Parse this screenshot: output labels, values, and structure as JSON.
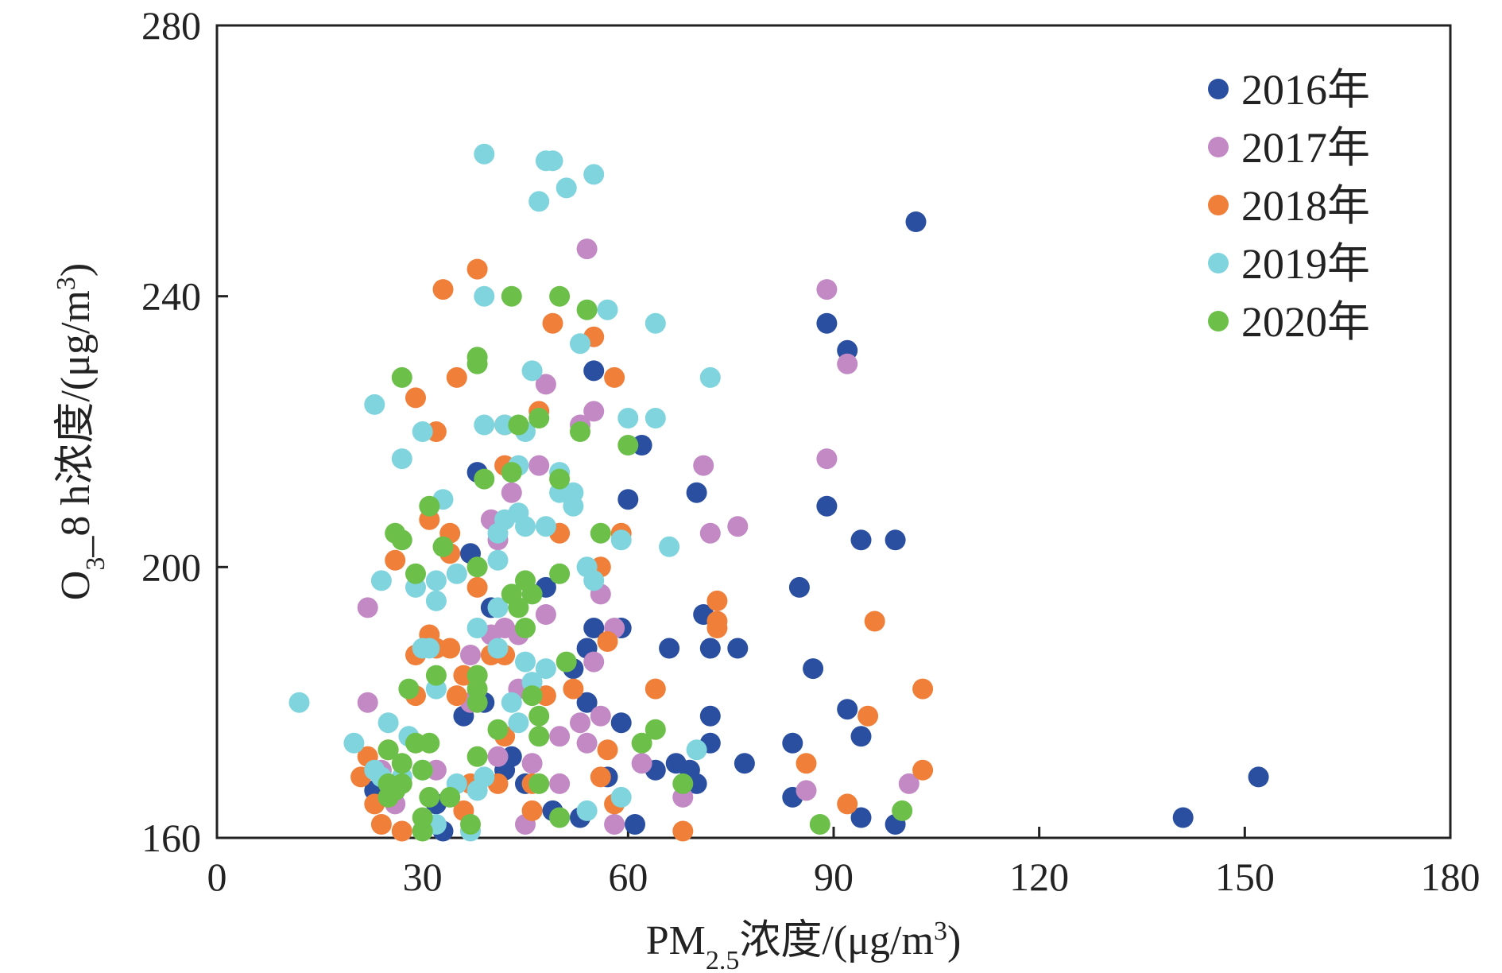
{
  "chart_data": {
    "type": "scatter",
    "title": "",
    "xlabel": {
      "main": "PM",
      "sub": "2.5",
      "rest": "浓度/(μg/m",
      "sup": "3",
      "end": ")"
    },
    "ylabel": {
      "main": "O",
      "sub": "3",
      "rest": "_8 h浓度/(μg/m",
      "sup": "3",
      "end": ")"
    },
    "xlim": [
      0,
      180
    ],
    "ylim": [
      160,
      280
    ],
    "xticks": [
      "0",
      "30",
      "60",
      "90",
      "120",
      "150",
      "180"
    ],
    "yticks": [
      "160",
      "200",
      "240",
      "280"
    ],
    "grid": false,
    "legend_position": "top-right",
    "series": [
      {
        "name": "2016年",
        "color": "#2a4fa0",
        "points": [
          [
            102,
            251
          ],
          [
            89,
            236
          ],
          [
            92,
            232
          ],
          [
            55,
            229
          ],
          [
            62,
            218
          ],
          [
            38,
            214
          ],
          [
            60,
            210
          ],
          [
            70,
            211
          ],
          [
            89,
            209
          ],
          [
            94,
            204
          ],
          [
            99,
            204
          ],
          [
            37,
            202
          ],
          [
            48,
            197
          ],
          [
            85,
            197
          ],
          [
            40,
            194
          ],
          [
            71,
            193
          ],
          [
            59,
            191
          ],
          [
            55,
            191
          ],
          [
            54,
            188
          ],
          [
            66,
            188
          ],
          [
            72,
            188
          ],
          [
            76,
            188
          ],
          [
            52,
            185
          ],
          [
            87,
            185
          ],
          [
            54,
            180
          ],
          [
            92,
            179
          ],
          [
            39,
            180
          ],
          [
            36,
            178
          ],
          [
            72,
            178
          ],
          [
            59,
            177
          ],
          [
            72,
            174
          ],
          [
            84,
            174
          ],
          [
            94,
            175
          ],
          [
            43,
            172
          ],
          [
            64,
            170
          ],
          [
            67,
            171
          ],
          [
            69,
            170
          ],
          [
            77,
            171
          ],
          [
            42,
            170
          ],
          [
            57,
            169
          ],
          [
            152,
            169
          ],
          [
            45,
            168
          ],
          [
            70,
            168
          ],
          [
            23,
            167
          ],
          [
            26,
            167
          ],
          [
            84,
            166
          ],
          [
            32,
            165
          ],
          [
            49,
            164
          ],
          [
            53,
            163
          ],
          [
            94,
            163
          ],
          [
            141,
            163
          ],
          [
            61,
            162
          ],
          [
            99,
            162
          ],
          [
            33,
            161
          ]
        ]
      },
      {
        "name": "2017年",
        "color": "#c289c5",
        "points": [
          [
            54,
            247
          ],
          [
            89,
            241
          ],
          [
            92,
            230
          ],
          [
            48,
            227
          ],
          [
            55,
            223
          ],
          [
            53,
            221
          ],
          [
            89,
            216
          ],
          [
            71,
            215
          ],
          [
            47,
            215
          ],
          [
            43,
            211
          ],
          [
            40,
            207
          ],
          [
            76,
            206
          ],
          [
            72,
            205
          ],
          [
            41,
            204
          ],
          [
            22,
            194
          ],
          [
            48,
            193
          ],
          [
            42,
            191
          ],
          [
            58,
            191
          ],
          [
            40,
            190
          ],
          [
            44,
            190
          ],
          [
            56,
            196
          ],
          [
            37,
            187
          ],
          [
            55,
            186
          ],
          [
            22,
            180
          ],
          [
            44,
            182
          ],
          [
            37,
            180
          ],
          [
            53,
            177
          ],
          [
            56,
            178
          ],
          [
            50,
            175
          ],
          [
            54,
            174
          ],
          [
            41,
            172
          ],
          [
            46,
            171
          ],
          [
            62,
            171
          ],
          [
            24,
            170
          ],
          [
            32,
            170
          ],
          [
            50,
            168
          ],
          [
            86,
            167
          ],
          [
            101,
            168
          ],
          [
            68,
            166
          ],
          [
            26,
            165
          ],
          [
            45,
            162
          ],
          [
            58,
            162
          ]
        ]
      },
      {
        "name": "2018年",
        "color": "#f07f3a",
        "points": [
          [
            38,
            244
          ],
          [
            33,
            241
          ],
          [
            49,
            236
          ],
          [
            55,
            234
          ],
          [
            35,
            228
          ],
          [
            58,
            228
          ],
          [
            29,
            225
          ],
          [
            47,
            223
          ],
          [
            42,
            221
          ],
          [
            32,
            220
          ],
          [
            42,
            215
          ],
          [
            31,
            207
          ],
          [
            34,
            205
          ],
          [
            50,
            205
          ],
          [
            26,
            201
          ],
          [
            34,
            202
          ],
          [
            56,
            200
          ],
          [
            59,
            205
          ],
          [
            38,
            197
          ],
          [
            73,
            195
          ],
          [
            73,
            192
          ],
          [
            96,
            192
          ],
          [
            31,
            190
          ],
          [
            73,
            191
          ],
          [
            57,
            189
          ],
          [
            29,
            187
          ],
          [
            32,
            188
          ],
          [
            34,
            188
          ],
          [
            40,
            187
          ],
          [
            42,
            187
          ],
          [
            36,
            184
          ],
          [
            38,
            184
          ],
          [
            64,
            182
          ],
          [
            103,
            182
          ],
          [
            29,
            181
          ],
          [
            35,
            181
          ],
          [
            48,
            181
          ],
          [
            52,
            182
          ],
          [
            95,
            178
          ],
          [
            42,
            175
          ],
          [
            57,
            173
          ],
          [
            22,
            172
          ],
          [
            25,
            173
          ],
          [
            86,
            171
          ],
          [
            103,
            170
          ],
          [
            21,
            169
          ],
          [
            56,
            169
          ],
          [
            41,
            168
          ],
          [
            37,
            168
          ],
          [
            46,
            168
          ],
          [
            23,
            165
          ],
          [
            25,
            166
          ],
          [
            36,
            164
          ],
          [
            46,
            164
          ],
          [
            58,
            165
          ],
          [
            92,
            165
          ],
          [
            24,
            162
          ],
          [
            27,
            161
          ],
          [
            68,
            161
          ]
        ]
      },
      {
        "name": "2019年",
        "color": "#7fd4dd",
        "points": [
          [
            39,
            261
          ],
          [
            48,
            260
          ],
          [
            49,
            260
          ],
          [
            55,
            258
          ],
          [
            51,
            256
          ],
          [
            47,
            254
          ],
          [
            57,
            238
          ],
          [
            64,
            236
          ],
          [
            53,
            233
          ],
          [
            39,
            240
          ],
          [
            46,
            229
          ],
          [
            72,
            228
          ],
          [
            23,
            224
          ],
          [
            30,
            220
          ],
          [
            39,
            221
          ],
          [
            42,
            221
          ],
          [
            60,
            222
          ],
          [
            64,
            222
          ],
          [
            45,
            220
          ],
          [
            27,
            216
          ],
          [
            44,
            215
          ],
          [
            50,
            214
          ],
          [
            52,
            211
          ],
          [
            50,
            211
          ],
          [
            52,
            209
          ],
          [
            33,
            210
          ],
          [
            44,
            208
          ],
          [
            42,
            207
          ],
          [
            45,
            206
          ],
          [
            48,
            206
          ],
          [
            66,
            203
          ],
          [
            41,
            205
          ],
          [
            54,
            200
          ],
          [
            59,
            204
          ],
          [
            35,
            199
          ],
          [
            24,
            198
          ],
          [
            29,
            197
          ],
          [
            32,
            198
          ],
          [
            55,
            198
          ],
          [
            32,
            195
          ],
          [
            41,
            201
          ],
          [
            38,
            191
          ],
          [
            41,
            194
          ],
          [
            30,
            188
          ],
          [
            31,
            188
          ],
          [
            41,
            188
          ],
          [
            45,
            186
          ],
          [
            48,
            185
          ],
          [
            46,
            183
          ],
          [
            32,
            182
          ],
          [
            43,
            180
          ],
          [
            12,
            180
          ],
          [
            25,
            177
          ],
          [
            44,
            177
          ],
          [
            20,
            174
          ],
          [
            28,
            175
          ],
          [
            70,
            173
          ],
          [
            23,
            170
          ],
          [
            24,
            169
          ],
          [
            39,
            169
          ],
          [
            27,
            169
          ],
          [
            30,
            170
          ],
          [
            35,
            168
          ],
          [
            38,
            167
          ],
          [
            54,
            164
          ],
          [
            59,
            166
          ],
          [
            32,
            162
          ],
          [
            37,
            161
          ]
        ]
      },
      {
        "name": "2020年",
        "color": "#6cc04a",
        "points": [
          [
            43,
            240
          ],
          [
            50,
            240
          ],
          [
            54,
            238
          ],
          [
            38,
            231
          ],
          [
            38,
            230
          ],
          [
            27,
            228
          ],
          [
            44,
            221
          ],
          [
            47,
            222
          ],
          [
            53,
            220
          ],
          [
            60,
            218
          ],
          [
            39,
            213
          ],
          [
            43,
            214
          ],
          [
            50,
            213
          ],
          [
            31,
            209
          ],
          [
            26,
            205
          ],
          [
            56,
            205
          ],
          [
            27,
            204
          ],
          [
            33,
            203
          ],
          [
            38,
            200
          ],
          [
            29,
            199
          ],
          [
            50,
            199
          ],
          [
            45,
            198
          ],
          [
            43,
            196
          ],
          [
            46,
            196
          ],
          [
            44,
            194
          ],
          [
            45,
            191
          ],
          [
            51,
            186
          ],
          [
            32,
            184
          ],
          [
            38,
            184
          ],
          [
            38,
            182
          ],
          [
            46,
            181
          ],
          [
            28,
            182
          ],
          [
            38,
            180
          ],
          [
            47,
            178
          ],
          [
            41,
            176
          ],
          [
            64,
            176
          ],
          [
            47,
            175
          ],
          [
            62,
            174
          ],
          [
            25,
            173
          ],
          [
            29,
            174
          ],
          [
            31,
            174
          ],
          [
            38,
            172
          ],
          [
            27,
            171
          ],
          [
            30,
            170
          ],
          [
            31,
            166
          ],
          [
            34,
            166
          ],
          [
            68,
            168
          ],
          [
            47,
            168
          ],
          [
            25,
            168
          ],
          [
            27,
            168
          ],
          [
            25,
            166
          ],
          [
            26,
            167
          ],
          [
            100,
            164
          ],
          [
            50,
            163
          ],
          [
            30,
            163
          ],
          [
            30,
            161
          ],
          [
            37,
            162
          ],
          [
            88,
            162
          ]
        ]
      }
    ]
  }
}
